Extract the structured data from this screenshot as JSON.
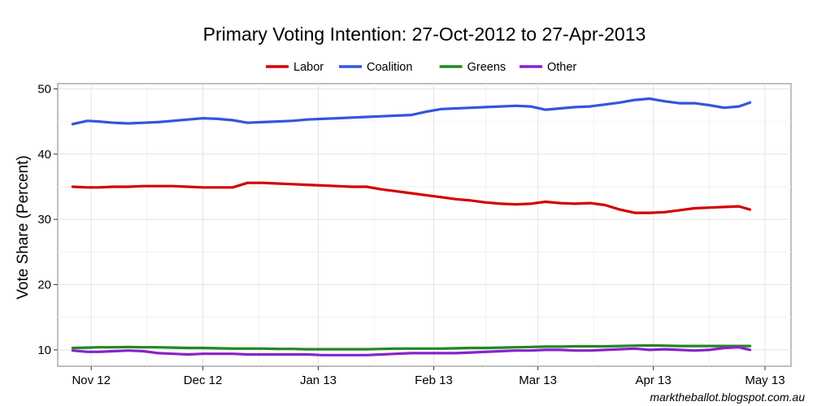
{
  "chart_data": {
    "type": "line",
    "title": "Primary Voting Intention: 27-Oct-2012 to 27-Apr-2013",
    "xlabel": "",
    "ylabel": "Vote Share (Percent)",
    "x_ticks": [
      {
        "label": "Nov 12",
        "date": "2012-11-01"
      },
      {
        "label": "Dec 12",
        "date": "2012-12-01"
      },
      {
        "label": "Jan 13",
        "date": "2013-01-01"
      },
      {
        "label": "Feb 13",
        "date": "2013-02-01"
      },
      {
        "label": "Mar 13",
        "date": "2013-03-01"
      },
      {
        "label": "Apr 13",
        "date": "2013-04-01"
      },
      {
        "label": "May 13",
        "date": "2013-05-01"
      }
    ],
    "xlim": [
      "2012-10-23",
      "2013-05-08"
    ],
    "ylim": [
      7.5,
      50.8
    ],
    "y_ticks": [
      10,
      20,
      30,
      40,
      50
    ],
    "grid": true,
    "legend_position": "top",
    "x": [
      "2012-10-27",
      "2012-10-31",
      "2012-11-03",
      "2012-11-07",
      "2012-11-11",
      "2012-11-15",
      "2012-11-19",
      "2012-11-23",
      "2012-11-27",
      "2012-12-01",
      "2012-12-05",
      "2012-12-09",
      "2012-12-13",
      "2012-12-17",
      "2012-12-21",
      "2012-12-25",
      "2012-12-29",
      "2013-01-02",
      "2013-01-06",
      "2013-01-10",
      "2013-01-14",
      "2013-01-18",
      "2013-01-22",
      "2013-01-26",
      "2013-01-30",
      "2013-02-03",
      "2013-02-07",
      "2013-02-11",
      "2013-02-15",
      "2013-02-19",
      "2013-02-23",
      "2013-02-27",
      "2013-03-03",
      "2013-03-07",
      "2013-03-11",
      "2013-03-15",
      "2013-03-19",
      "2013-03-23",
      "2013-03-27",
      "2013-03-31",
      "2013-04-04",
      "2013-04-08",
      "2013-04-12",
      "2013-04-16",
      "2013-04-20",
      "2013-04-24",
      "2013-04-27"
    ],
    "series": [
      {
        "name": "Labor",
        "color": "#d40000",
        "values": [
          35.0,
          34.9,
          34.9,
          35.0,
          35.0,
          35.1,
          35.1,
          35.1,
          35.0,
          34.9,
          34.9,
          34.9,
          35.6,
          35.6,
          35.5,
          35.4,
          35.3,
          35.2,
          35.1,
          35.0,
          35.0,
          34.6,
          34.3,
          34.0,
          33.7,
          33.4,
          33.1,
          32.9,
          32.6,
          32.4,
          32.3,
          32.4,
          32.7,
          32.5,
          32.4,
          32.5,
          32.2,
          31.5,
          31.0,
          31.0,
          31.1,
          31.4,
          31.7,
          31.8,
          31.9,
          32.0,
          31.5
        ]
      },
      {
        "name": "Coalition",
        "color": "#3355dd",
        "values": [
          44.6,
          45.1,
          45.0,
          44.8,
          44.7,
          44.8,
          44.9,
          45.1,
          45.3,
          45.5,
          45.4,
          45.2,
          44.8,
          44.9,
          45.0,
          45.1,
          45.3,
          45.4,
          45.5,
          45.6,
          45.7,
          45.8,
          45.9,
          46.0,
          46.5,
          46.9,
          47.0,
          47.1,
          47.2,
          47.3,
          47.4,
          47.3,
          46.8,
          47.0,
          47.2,
          47.3,
          47.6,
          47.9,
          48.3,
          48.5,
          48.1,
          47.8,
          47.8,
          47.5,
          47.1,
          47.3,
          47.9
        ]
      },
      {
        "name": "Greens",
        "color": "#228822",
        "values": [
          10.3,
          10.35,
          10.4,
          10.4,
          10.45,
          10.4,
          10.4,
          10.35,
          10.3,
          10.3,
          10.25,
          10.2,
          10.2,
          10.2,
          10.15,
          10.15,
          10.1,
          10.1,
          10.1,
          10.1,
          10.1,
          10.15,
          10.2,
          10.2,
          10.2,
          10.2,
          10.25,
          10.3,
          10.3,
          10.35,
          10.4,
          10.45,
          10.5,
          10.5,
          10.55,
          10.55,
          10.55,
          10.6,
          10.65,
          10.7,
          10.65,
          10.6,
          10.6,
          10.6,
          10.6,
          10.6,
          10.6
        ]
      },
      {
        "name": "Other",
        "color": "#8822cc",
        "values": [
          9.9,
          9.7,
          9.7,
          9.8,
          9.9,
          9.8,
          9.5,
          9.4,
          9.3,
          9.4,
          9.4,
          9.4,
          9.3,
          9.3,
          9.3,
          9.3,
          9.3,
          9.2,
          9.2,
          9.2,
          9.2,
          9.3,
          9.4,
          9.5,
          9.5,
          9.5,
          9.5,
          9.6,
          9.7,
          9.8,
          9.9,
          9.9,
          10.0,
          10.0,
          9.9,
          9.9,
          10.0,
          10.1,
          10.2,
          10.0,
          10.1,
          10.0,
          9.9,
          10.0,
          10.3,
          10.4,
          10.0
        ]
      }
    ],
    "credit": "marktheballot.blogspot.com.au"
  }
}
